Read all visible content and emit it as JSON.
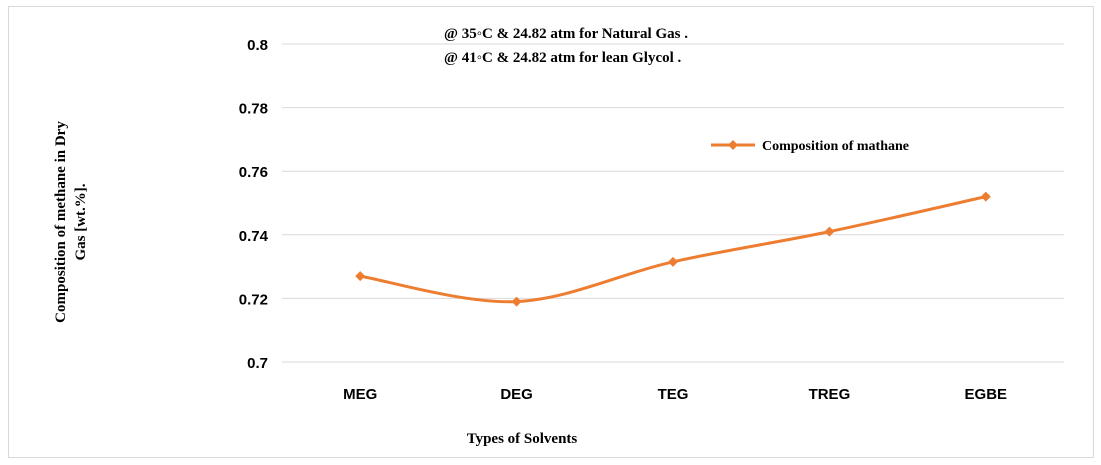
{
  "chart_data": {
    "type": "line",
    "categories": [
      "MEG",
      "DEG",
      "TEG",
      "TREG",
      "EGBE"
    ],
    "series": [
      {
        "name": "Composition of mathane",
        "values": [
          0.727,
          0.719,
          0.7315,
          0.741,
          0.752
        ],
        "color": "#ed7d31"
      }
    ],
    "annotations": [
      "@ 35◦C & 24.82 atm for Natural Gas .",
      "@ 41◦C & 24.82 atm for lean Glycol ."
    ],
    "xlabel": "Types of Solvents",
    "ylabel_lines": [
      "Composition of  methane in Dry",
      "Gas [wt.%]."
    ],
    "ylim": [
      0.7,
      0.8
    ],
    "yticks": [
      0.7,
      0.72,
      0.74,
      0.76,
      0.78,
      0.8
    ],
    "ytick_labels": [
      "0.7",
      "0.72",
      "0.74",
      "0.76",
      "0.78",
      "0.8"
    ],
    "grid": true,
    "legend_position": "top-right"
  }
}
